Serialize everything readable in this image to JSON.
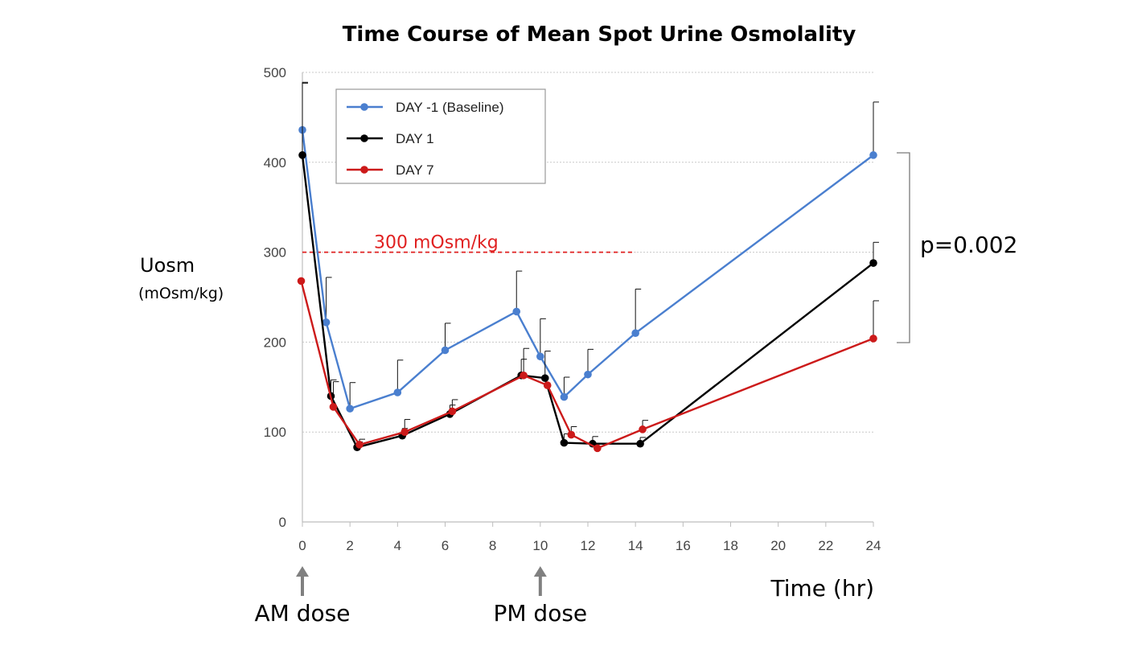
{
  "chart_data": {
    "type": "line",
    "title": "Time Course of Mean Spot Urine Osmolality",
    "ylabel": "Uosm",
    "ylabel_unit": "(mOsm/kg)",
    "xlabel": "Time (hr)",
    "xlim": [
      0,
      24
    ],
    "ylim": [
      0,
      500
    ],
    "x_ticks": [
      0,
      2,
      4,
      6,
      8,
      10,
      12,
      14,
      16,
      18,
      20,
      22,
      24
    ],
    "y_ticks": [
      0,
      100,
      200,
      300,
      400,
      500
    ],
    "grid": true,
    "legend_position": "top-left",
    "series": [
      {
        "name": "DAY -1 (Baseline)",
        "color": "#4a7fcf",
        "x": [
          0,
          1,
          2,
          4,
          6,
          9,
          10,
          11,
          12,
          14,
          24
        ],
        "y": [
          436,
          222,
          126,
          144,
          191,
          234,
          184,
          139,
          164,
          210,
          408
        ],
        "err": [
          53,
          50,
          29,
          36,
          30,
          45,
          42,
          22,
          28,
          49,
          59
        ]
      },
      {
        "name": "DAY 1",
        "color": "#000000",
        "x": [
          0,
          1.2,
          2.3,
          4.2,
          6.2,
          9.2,
          10.2,
          11,
          12.2,
          14.2,
          24
        ],
        "y": [
          408,
          140,
          83,
          96,
          120,
          163,
          160,
          88,
          87,
          87,
          288
        ],
        "err": [
          80,
          18,
          6,
          8,
          10,
          18,
          30,
          10,
          8,
          7,
          23
        ]
      },
      {
        "name": "DAY 7",
        "color": "#cc1a1a",
        "x": [
          -0.05,
          1.3,
          2.4,
          4.3,
          6.3,
          9.3,
          10.3,
          11.3,
          12.4,
          14.3,
          24
        ],
        "y": [
          268,
          128,
          86,
          100,
          123,
          163,
          152,
          97,
          82,
          103,
          204
        ],
        "err": [
          0,
          28,
          6,
          14,
          13,
          30,
          0,
          9,
          0,
          10,
          42
        ]
      }
    ],
    "reference_line": {
      "y": 300,
      "x_start": 0,
      "x_end": 14,
      "label": "300 mOsm/kg",
      "color": "#e02020"
    },
    "significance": {
      "label": "p=0.002"
    },
    "dose_markers": [
      {
        "x": 0,
        "label": "AM dose"
      },
      {
        "x": 10,
        "label": "PM dose"
      }
    ]
  }
}
